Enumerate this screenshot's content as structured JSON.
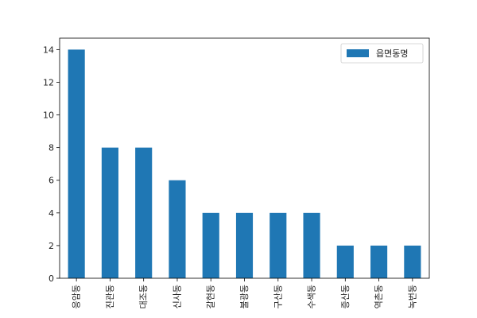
{
  "chart_data": {
    "type": "bar",
    "categories": [
      "응암동",
      "진관동",
      "대조동",
      "신사동",
      "갈현동",
      "불광동",
      "구산동",
      "수색동",
      "증산동",
      "역촌동",
      "녹번동"
    ],
    "series": [
      {
        "name": "읍면동명",
        "values": [
          14,
          8,
          8,
          6,
          4,
          4,
          4,
          4,
          2,
          2,
          2
        ]
      }
    ],
    "yticks": [
      "0",
      "2",
      "4",
      "6",
      "8",
      "10",
      "12",
      "14"
    ],
    "ylim": [
      0,
      14.7
    ],
    "grid": false,
    "legend_position": "upper-right",
    "bar_color": "#1f77b4"
  }
}
